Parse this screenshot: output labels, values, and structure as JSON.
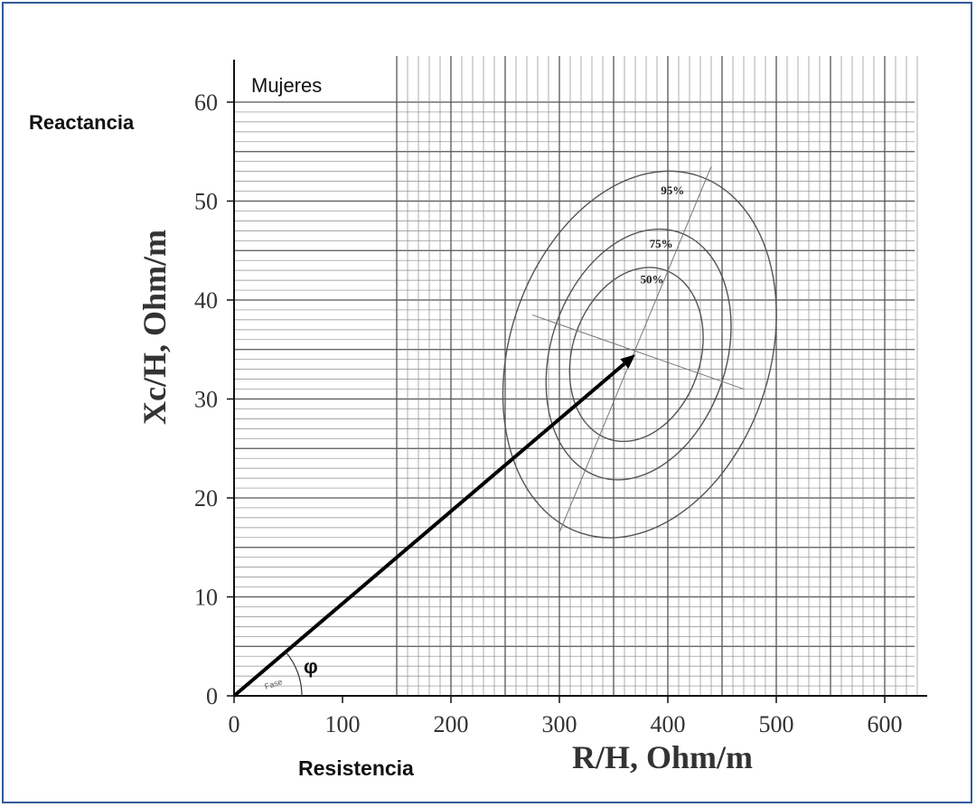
{
  "chart_data": {
    "type": "scatter",
    "panel_label": "Mujeres",
    "corner_y_label": "Reactancia",
    "corner_x_label": "Resistencia",
    "xlabel": "R/H, Ohm/m",
    "ylabel": "Xc/H, Ohm/m",
    "xlim": [
      0,
      640
    ],
    "ylim": [
      0,
      65
    ],
    "x_ticks": [
      "0",
      "100",
      "200",
      "300",
      "400",
      "500",
      "600"
    ],
    "y_ticks": [
      "0",
      "10",
      "20",
      "30",
      "40",
      "50",
      "60"
    ],
    "grid": true,
    "vector": {
      "from": [
        0,
        0
      ],
      "to": [
        370,
        34.5
      ]
    },
    "angle_label": "φ",
    "angle_sublabel": "Fase",
    "tolerance_ellipses": [
      {
        "label": "50%",
        "center": [
          356,
          34.5
        ],
        "x_extent": [
          312,
          430
        ],
        "y_extent": [
          25.5,
          43.5
        ]
      },
      {
        "label": "75%",
        "center": [
          376,
          34.5
        ],
        "x_extent": [
          292,
          454
        ],
        "y_extent": [
          21.5,
          47.5
        ]
      },
      {
        "label": "95%",
        "center": [
          374,
          34.5
        ],
        "x_extent": [
          254,
          494
        ],
        "y_extent": [
          15.5,
          53.5
        ]
      }
    ],
    "axes_lines": {
      "major_axis": {
        "from": [
          300,
          16.5
        ],
        "to": [
          440,
          53.5
        ]
      },
      "minor_axis": {
        "from": [
          275,
          38.5
        ],
        "to": [
          470,
          31
        ]
      }
    }
  }
}
